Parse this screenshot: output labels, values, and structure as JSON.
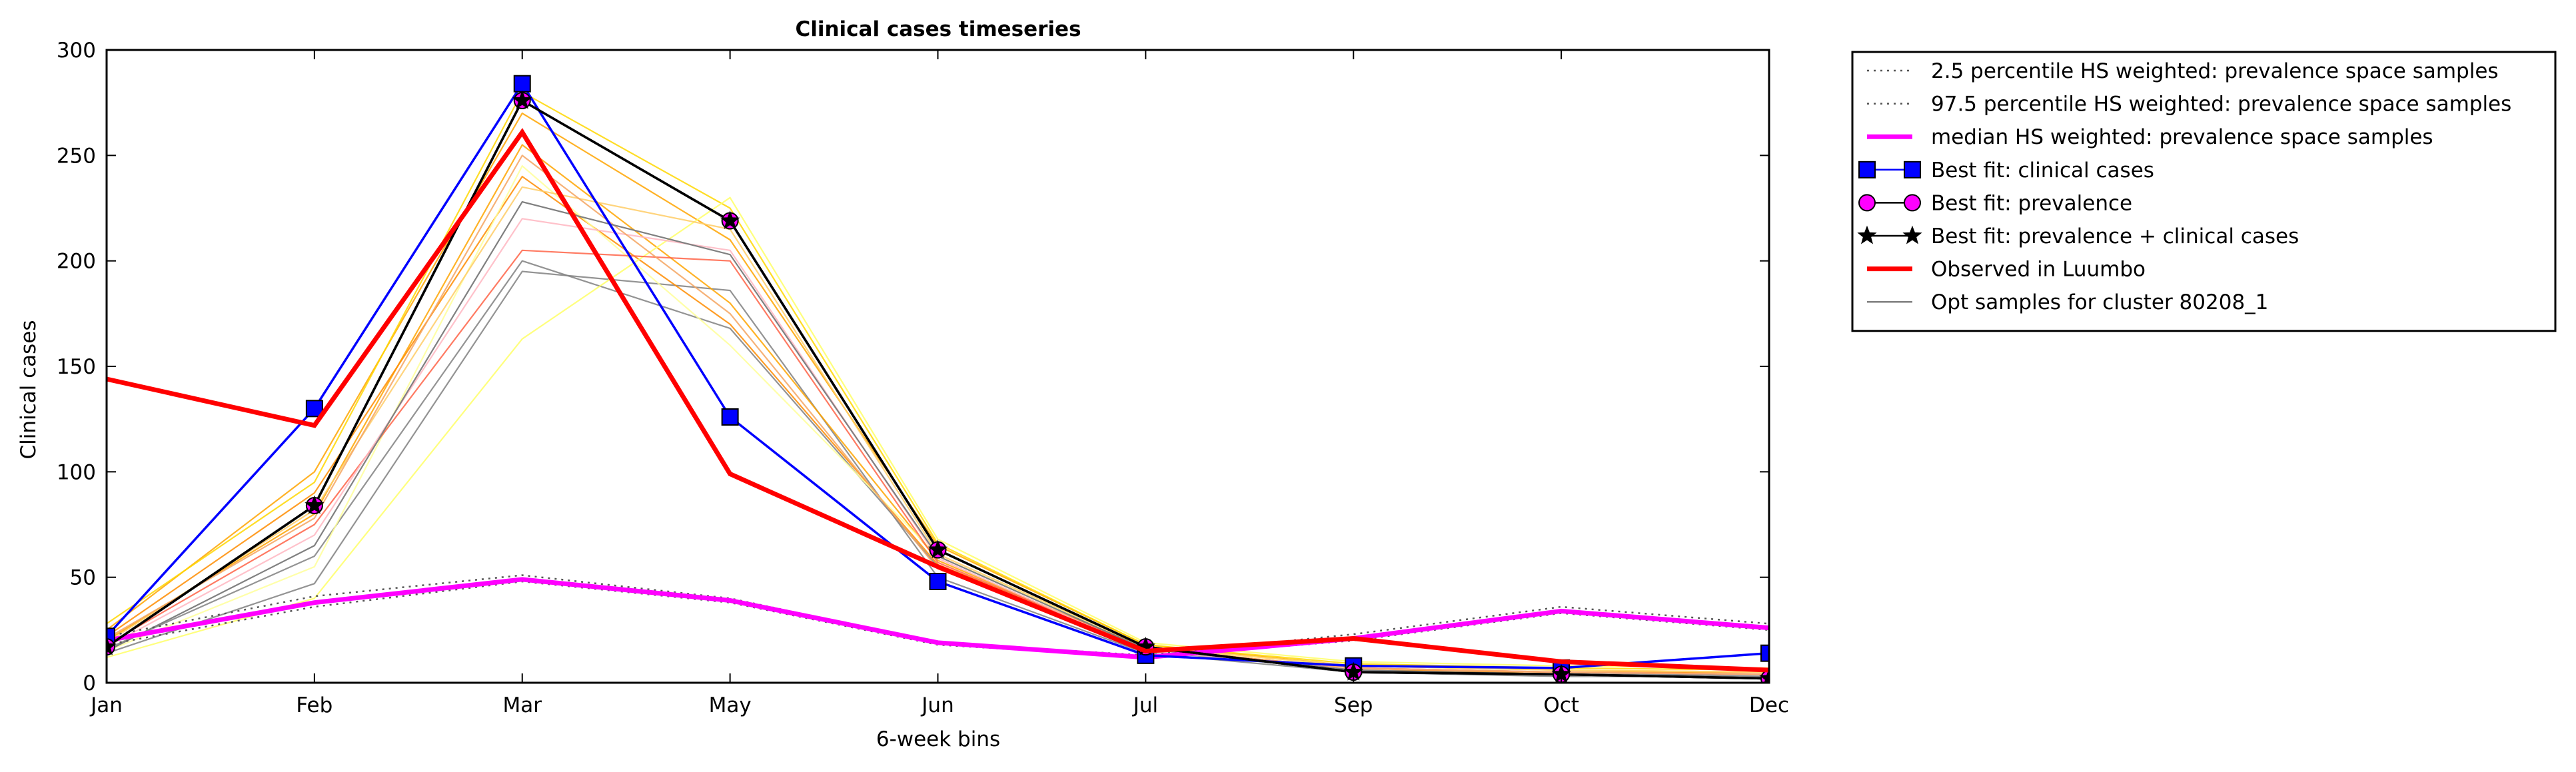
{
  "chart_data": {
    "type": "line",
    "title": "Clinical cases timeseries",
    "xlabel": "6-week bins",
    "ylabel": "Clinical cases",
    "categories": [
      "Jan",
      "Feb",
      "Mar",
      "May",
      "Jun",
      "Jul",
      "Sep",
      "Oct",
      "Dec"
    ],
    "ylim": [
      0,
      300
    ],
    "yticks": [
      0,
      50,
      100,
      150,
      200,
      250,
      300
    ],
    "grid": false,
    "legend_position": "outside-right",
    "series": [
      {
        "name": "2.5 percentile HS weighted: prevalence space samples",
        "style": "dotted",
        "color": "#555555",
        "values": [
          18,
          36,
          48,
          38,
          18,
          12,
          20,
          33,
          25
        ]
      },
      {
        "name": "97.5 percentile HS weighted: prevalence space samples",
        "style": "dotted",
        "color": "#555555",
        "values": [
          22,
          41,
          51,
          40,
          19,
          13,
          23,
          36,
          28
        ]
      },
      {
        "name": "median HS weighted: prevalence space samples",
        "style": "solid",
        "color": "#ff00ff",
        "values": [
          20,
          38,
          49,
          39,
          19,
          12,
          21,
          34,
          26
        ]
      },
      {
        "name": "Best fit: clinical cases",
        "style": "solid",
        "color": "#0000ff",
        "marker": "square",
        "values": [
          22,
          130,
          284,
          126,
          48,
          13,
          8,
          7,
          14
        ]
      },
      {
        "name": "Best fit: prevalence",
        "style": "solid",
        "color": "#000000",
        "marker": "circle",
        "values": [
          17,
          84,
          276,
          219,
          63,
          17,
          5,
          4,
          2
        ]
      },
      {
        "name": "Best fit: prevalence + clinical cases",
        "style": "solid",
        "color": "#000000",
        "marker": "star",
        "values": [
          17,
          84,
          276,
          219,
          63,
          17,
          5,
          4,
          2
        ]
      },
      {
        "name": "Observed in Luumbo",
        "style": "solid",
        "color": "#ff0000",
        "values": [
          144,
          122,
          261,
          99,
          55,
          15,
          21,
          10,
          6
        ]
      },
      {
        "name": "Opt samples for cluster 80208_1",
        "style": "solid",
        "color": "#808080",
        "values": [
          15,
          65,
          228,
          203,
          60,
          16,
          6,
          4,
          3
        ]
      }
    ],
    "background_samples": [
      {
        "color": "#808080",
        "values": [
          14,
          47,
          195,
          186,
          50,
          14,
          5,
          3,
          3
        ]
      },
      {
        "color": "#808080",
        "values": [
          16,
          60,
          200,
          168,
          55,
          15,
          6,
          4,
          4
        ]
      },
      {
        "color": "#ffa500",
        "values": [
          25,
          100,
          270,
          210,
          65,
          18,
          8,
          6,
          5
        ]
      },
      {
        "color": "#ffa500",
        "values": [
          20,
          80,
          255,
          180,
          58,
          16,
          7,
          5,
          4
        ]
      },
      {
        "color": "#ff8c00",
        "values": [
          22,
          90,
          240,
          170,
          56,
          17,
          6,
          5,
          5
        ]
      },
      {
        "color": "#ffd700",
        "values": [
          28,
          95,
          280,
          225,
          66,
          18,
          9,
          7,
          6
        ]
      },
      {
        "color": "#ffff66",
        "values": [
          12,
          40,
          163,
          230,
          68,
          19,
          10,
          8,
          7
        ]
      },
      {
        "color": "#ffff99",
        "values": [
          15,
          55,
          245,
          160,
          60,
          17,
          8,
          6,
          5
        ]
      },
      {
        "color": "#ff6347",
        "values": [
          18,
          75,
          205,
          200,
          57,
          16,
          7,
          5,
          4
        ]
      },
      {
        "color": "#ffb6c1",
        "values": [
          17,
          70,
          220,
          205,
          59,
          15,
          7,
          5,
          4
        ]
      },
      {
        "color": "#ffcc66",
        "values": [
          19,
          82,
          235,
          215,
          61,
          17,
          8,
          6,
          5
        ]
      },
      {
        "color": "#f4a460",
        "values": [
          21,
          78,
          250,
          175,
          54,
          16,
          7,
          5,
          4
        ]
      }
    ]
  }
}
